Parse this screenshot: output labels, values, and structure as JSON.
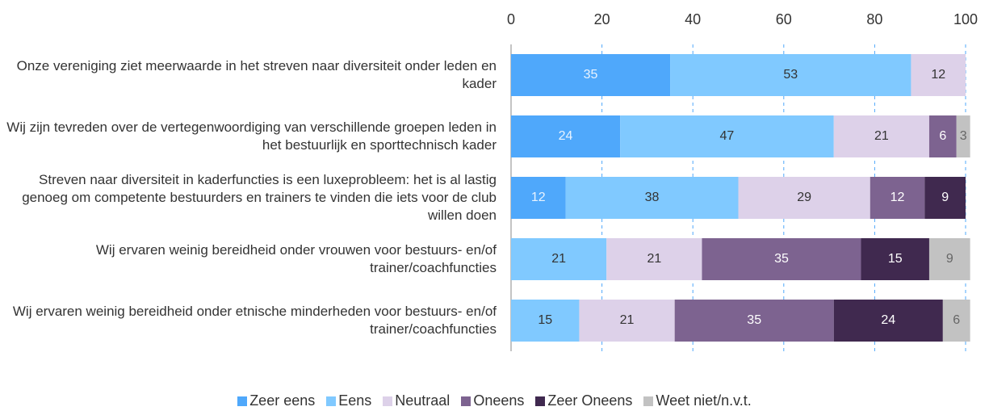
{
  "chart_data": {
    "type": "stacked-bar-horizontal",
    "categories": [
      "Onze vereniging ziet meerwaarde in het streven naar diversiteit onder leden en kader",
      "Wij zijn tevreden over de vertegenwoordiging van verschillende groepen leden in het bestuurlijk en sporttechnisch kader",
      "Streven naar diversiteit in kaderfuncties is een luxeprobleem: het is al lastig genoeg om competente bestuurders en trainers te vinden die iets voor de club willen doen",
      "Wij ervaren weinig bereidheid onder vrouwen voor bestuurs- en/of trainer/coachfuncties",
      "Wij ervaren weinig bereidheid onder etnische minderheden voor bestuurs- en/of trainer/coachfuncties"
    ],
    "series": [
      {
        "name": "Zeer eens",
        "color": "#4fa8fb",
        "values": [
          35,
          24,
          12,
          null,
          null
        ]
      },
      {
        "name": "Eens",
        "color": "#80c9ff",
        "values": [
          53,
          47,
          38,
          21,
          15
        ]
      },
      {
        "name": "Neutraal",
        "color": "#ddd1e9",
        "values": [
          12,
          21,
          29,
          21,
          21
        ]
      },
      {
        "name": "Oneens",
        "color": "#7d6390",
        "values": [
          null,
          6,
          12,
          35,
          35
        ]
      },
      {
        "name": "Zeer Oneens",
        "color": "#40294f",
        "values": [
          null,
          null,
          9,
          15,
          24
        ]
      },
      {
        "name": "Weet niet/n.v.t.",
        "color": "#c2c2c2",
        "values": [
          null,
          3,
          null,
          9,
          6
        ]
      }
    ],
    "xlim": [
      0,
      100
    ],
    "xticks": [
      0,
      20,
      40,
      60,
      80,
      100
    ],
    "grid": true,
    "legend": "bottom"
  }
}
